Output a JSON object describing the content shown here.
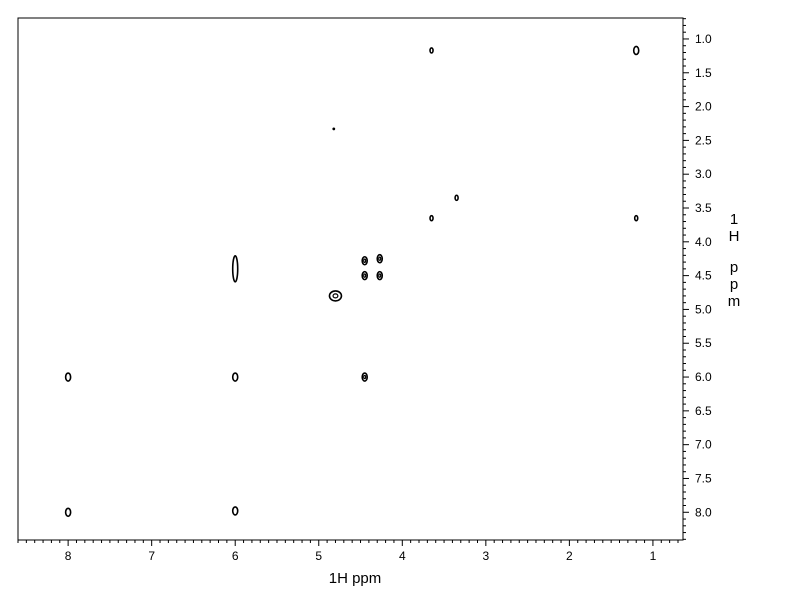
{
  "chart_data": {
    "type": "contour",
    "xlabel": "1H ppm",
    "ylabel": "1H ppm",
    "xlim": [
      8.6,
      0.64
    ],
    "ylim": [
      0.69,
      8.41
    ],
    "x_ticks": [
      "8",
      "7",
      "6",
      "5",
      "4",
      "3",
      "2",
      "1"
    ],
    "y_ticks": [
      "1.0",
      "1.5",
      "2.0",
      "2.5",
      "3.0",
      "3.5",
      "4.0",
      "4.5",
      "5.0",
      "5.5",
      "6.0",
      "6.5",
      "7.0",
      "7.5",
      "8.0"
    ],
    "grid": false,
    "peaks": [
      {
        "x": 1.2,
        "y": 1.17,
        "size": "medium"
      },
      {
        "x": 3.65,
        "y": 1.17,
        "size": "small"
      },
      {
        "x": 3.35,
        "y": 3.35,
        "size": "small"
      },
      {
        "x": 3.65,
        "y": 3.65,
        "size": "small"
      },
      {
        "x": 1.2,
        "y": 3.65,
        "size": "small"
      },
      {
        "x": 6.0,
        "y": 4.4,
        "size": "elongated"
      },
      {
        "x": 4.45,
        "y": 4.28,
        "size": "medium"
      },
      {
        "x": 4.45,
        "y": 4.5,
        "size": "medium"
      },
      {
        "x": 4.27,
        "y": 4.25,
        "size": "medium"
      },
      {
        "x": 4.27,
        "y": 4.5,
        "size": "medium"
      },
      {
        "x": 4.8,
        "y": 4.8,
        "size": "large"
      },
      {
        "x": 8.0,
        "y": 6.0,
        "size": "medium"
      },
      {
        "x": 6.0,
        "y": 6.0,
        "size": "medium"
      },
      {
        "x": 4.45,
        "y": 6.0,
        "size": "medium"
      },
      {
        "x": 8.0,
        "y": 8.0,
        "size": "medium"
      },
      {
        "x": 6.0,
        "y": 7.98,
        "size": "medium"
      },
      {
        "x": 4.82,
        "y": 2.33,
        "size": "dot"
      }
    ]
  }
}
